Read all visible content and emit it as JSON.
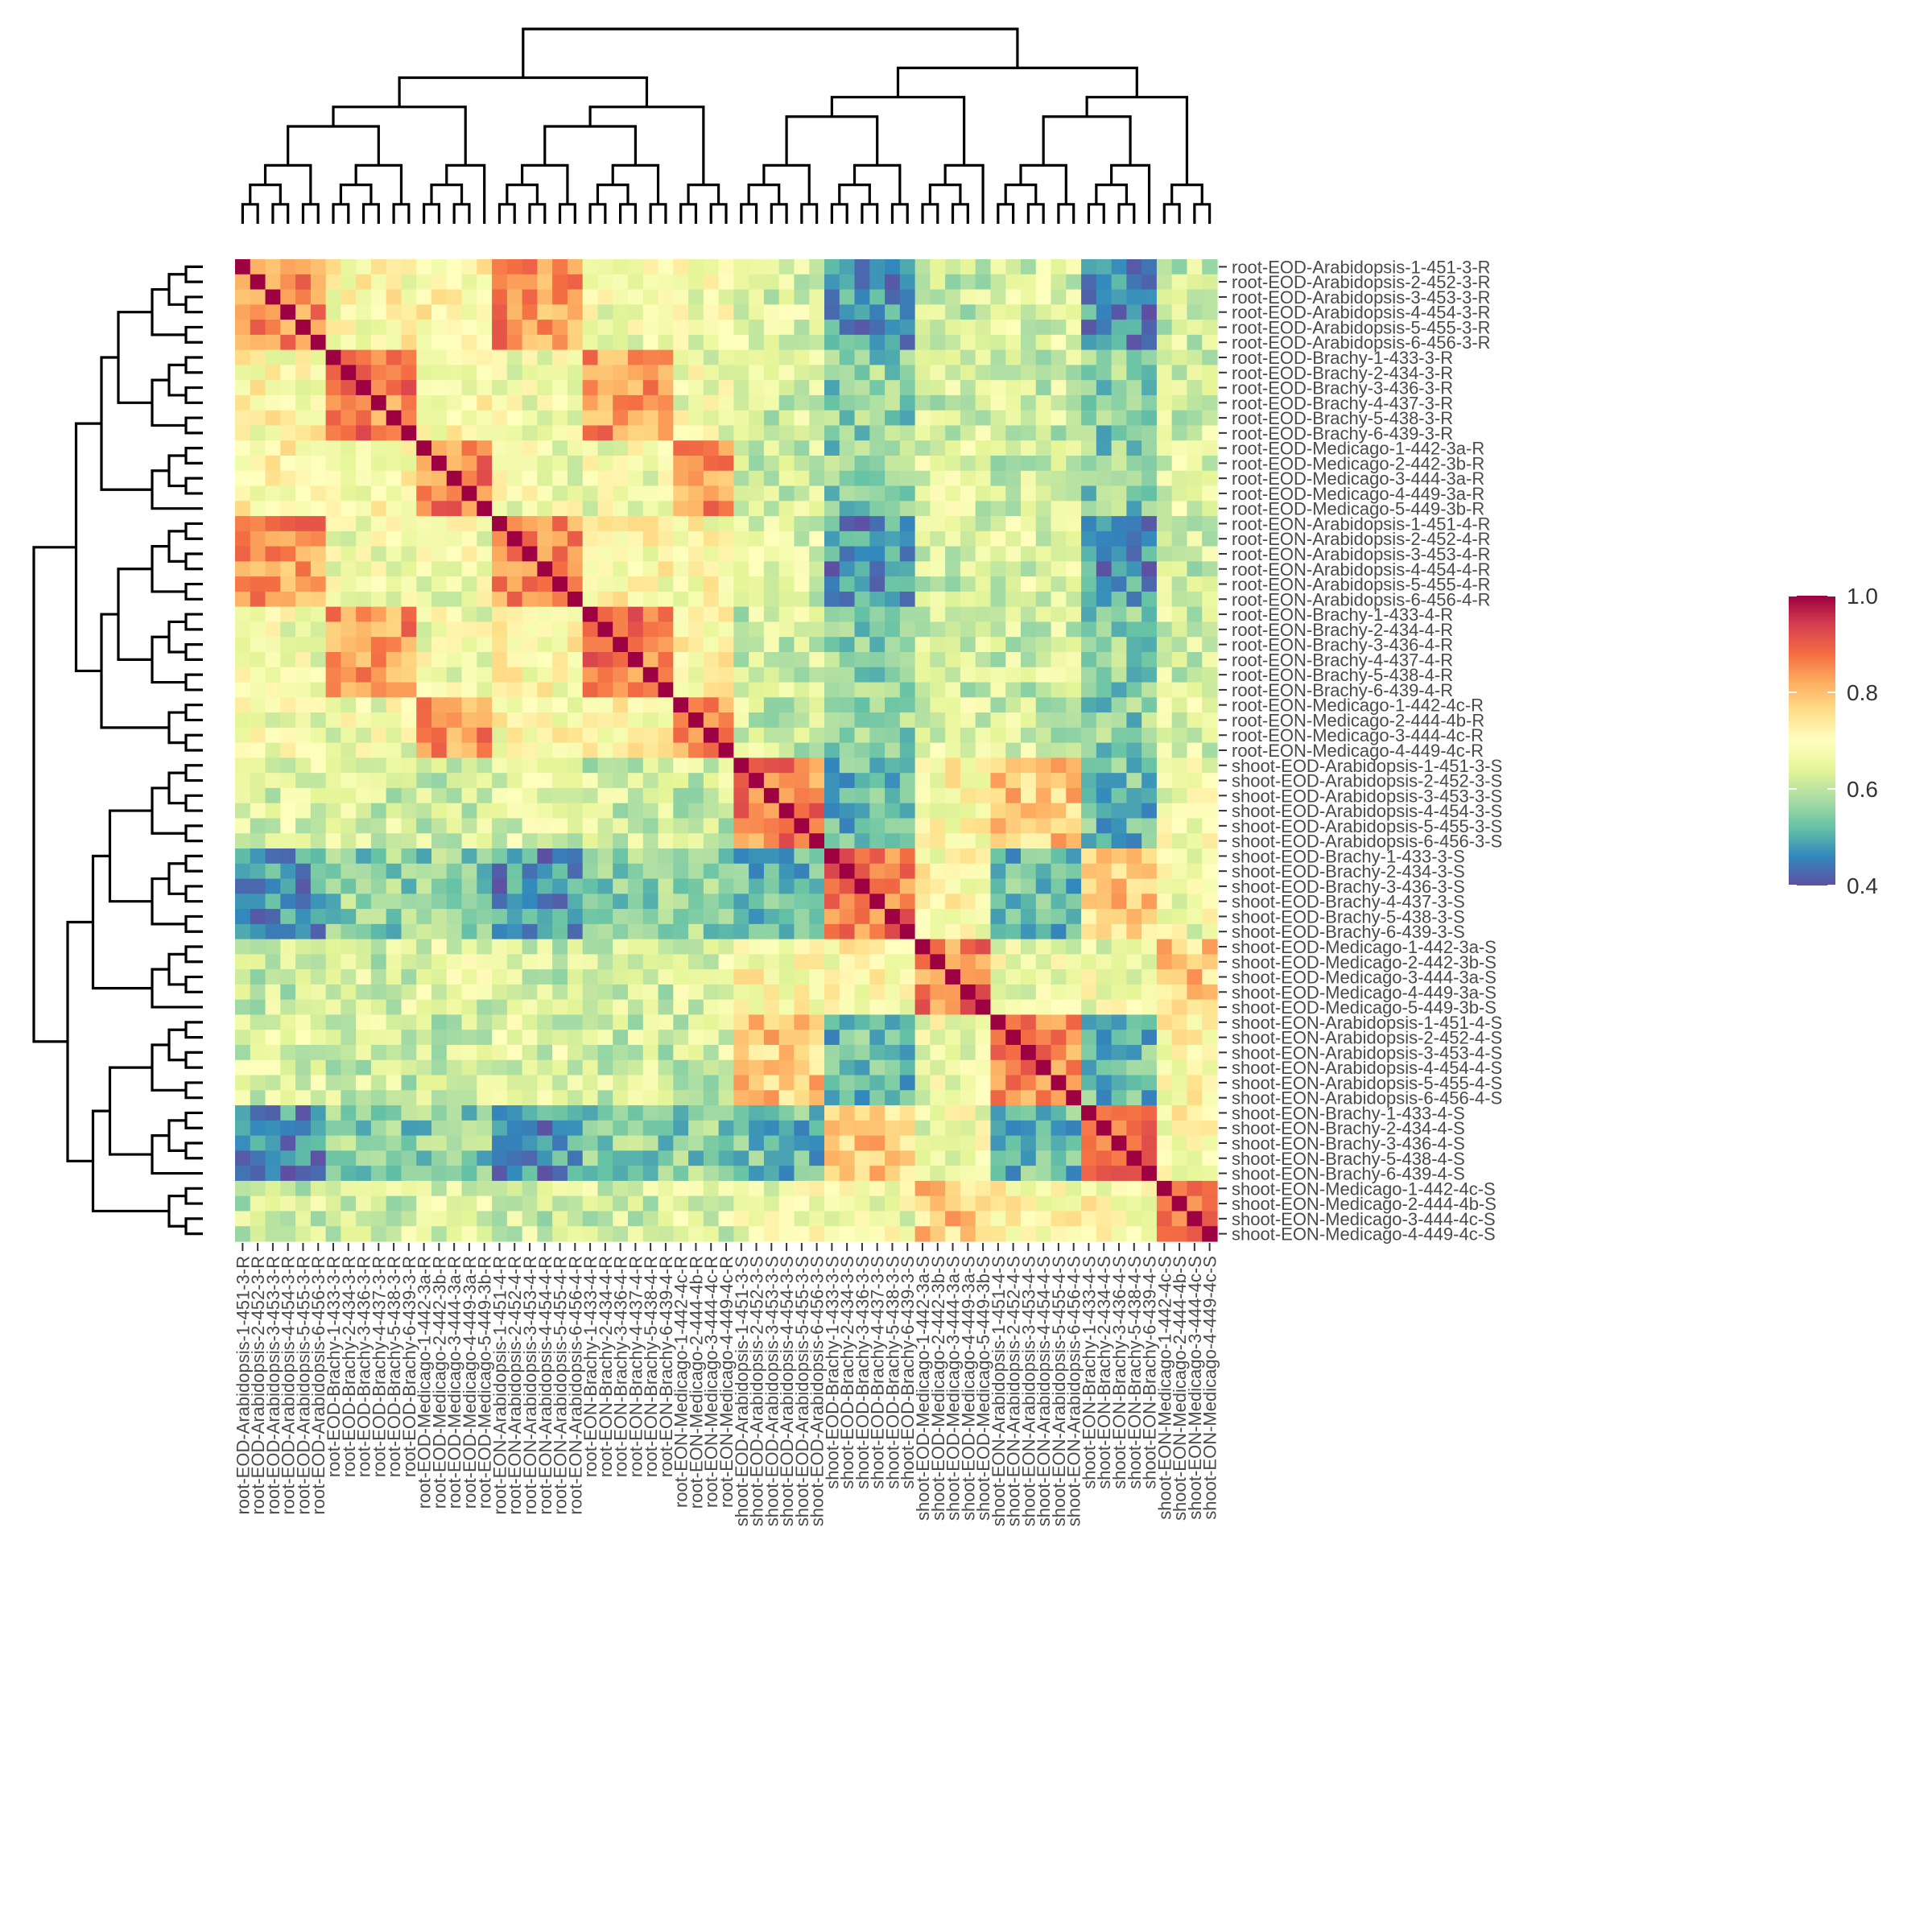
{
  "chart_data": {
    "type": "heatmap",
    "title": "",
    "xlabel": "",
    "ylabel": "",
    "samples": [
      "root-EOD-Arabidopsis-1-451-3-R",
      "root-EOD-Arabidopsis-2-452-3-R",
      "root-EOD-Arabidopsis-3-453-3-R",
      "root-EOD-Arabidopsis-4-454-3-R",
      "root-EOD-Arabidopsis-5-455-3-R",
      "root-EOD-Arabidopsis-6-456-3-R",
      "root-EOD-Brachy-1-433-3-R",
      "root-EOD-Brachy-2-434-3-R",
      "root-EOD-Brachy-3-436-3-R",
      "root-EOD-Brachy-4-437-3-R",
      "root-EOD-Brachy-5-438-3-R",
      "root-EOD-Brachy-6-439-3-R",
      "root-EOD-Medicago-1-442-3a-R",
      "root-EOD-Medicago-2-442-3b-R",
      "root-EOD-Medicago-3-444-3a-R",
      "root-EOD-Medicago-4-449-3a-R",
      "root-EOD-Medicago-5-449-3b-R",
      "root-EON-Arabidopsis-1-451-4-R",
      "root-EON-Arabidopsis-2-452-4-R",
      "root-EON-Arabidopsis-3-453-4-R",
      "root-EON-Arabidopsis-4-454-4-R",
      "root-EON-Arabidopsis-5-455-4-R",
      "root-EON-Arabidopsis-6-456-4-R",
      "root-EON-Brachy-1-433-4-R",
      "root-EON-Brachy-2-434-4-R",
      "root-EON-Brachy-3-436-4-R",
      "root-EON-Brachy-4-437-4-R",
      "root-EON-Brachy-5-438-4-R",
      "root-EON-Brachy-6-439-4-R",
      "root-EON-Medicago-1-442-4c-R",
      "root-EON-Medicago-2-444-4b-R",
      "root-EON-Medicago-3-444-4c-R",
      "root-EON-Medicago-4-449-4c-R",
      "shoot-EOD-Arabidopsis-1-451-3-S",
      "shoot-EOD-Arabidopsis-2-452-3-S",
      "shoot-EOD-Arabidopsis-3-453-3-S",
      "shoot-EOD-Arabidopsis-4-454-3-S",
      "shoot-EOD-Arabidopsis-5-455-3-S",
      "shoot-EOD-Arabidopsis-6-456-3-S",
      "shoot-EOD-Brachy-1-433-3-S",
      "shoot-EOD-Brachy-2-434-3-S",
      "shoot-EOD-Brachy-3-436-3-S",
      "shoot-EOD-Brachy-4-437-3-S",
      "shoot-EOD-Brachy-5-438-3-S",
      "shoot-EOD-Brachy-6-439-3-S",
      "shoot-EOD-Medicago-1-442-3a-S",
      "shoot-EOD-Medicago-2-442-3b-S",
      "shoot-EOD-Medicago-3-444-3a-S",
      "shoot-EOD-Medicago-4-449-3a-S",
      "shoot-EOD-Medicago-5-449-3b-S",
      "shoot-EON-Arabidopsis-1-451-4-S",
      "shoot-EON-Arabidopsis-2-452-4-S",
      "shoot-EON-Arabidopsis-3-453-4-S",
      "shoot-EON-Arabidopsis-4-454-4-S",
      "shoot-EON-Arabidopsis-5-455-4-S",
      "shoot-EON-Arabidopsis-6-456-4-S",
      "shoot-EON-Brachy-1-433-4-S",
      "shoot-EON-Brachy-2-434-4-S",
      "shoot-EON-Brachy-3-436-4-S",
      "shoot-EON-Brachy-5-438-4-S",
      "shoot-EON-Brachy-6-439-4-S",
      "shoot-EON-Medicago-1-442-4c-S",
      "shoot-EON-Medicago-2-444-4b-S",
      "shoot-EON-Medicago-3-444-4c-S",
      "shoot-EON-Medicago-4-449-4c-S"
    ],
    "groups": [
      {
        "tissue": "root",
        "cond": "EOD",
        "species": "Arabidopsis",
        "count": 6
      },
      {
        "tissue": "root",
        "cond": "EOD",
        "species": "Brachy",
        "count": 6
      },
      {
        "tissue": "root",
        "cond": "EOD",
        "species": "Medicago",
        "count": 5
      },
      {
        "tissue": "root",
        "cond": "EON",
        "species": "Arabidopsis",
        "count": 6
      },
      {
        "tissue": "root",
        "cond": "EON",
        "species": "Brachy",
        "count": 6
      },
      {
        "tissue": "root",
        "cond": "EON",
        "species": "Medicago",
        "count": 4
      },
      {
        "tissue": "shoot",
        "cond": "EOD",
        "species": "Arabidopsis",
        "count": 6
      },
      {
        "tissue": "shoot",
        "cond": "EOD",
        "species": "Brachy",
        "count": 6
      },
      {
        "tissue": "shoot",
        "cond": "EOD",
        "species": "Medicago",
        "count": 5
      },
      {
        "tissue": "shoot",
        "cond": "EON",
        "species": "Arabidopsis",
        "count": 6
      },
      {
        "tissue": "shoot",
        "cond": "EON",
        "species": "Brachy",
        "count": 5
      },
      {
        "tissue": "shoot",
        "cond": "EON",
        "species": "Medicago",
        "count": 4
      }
    ],
    "value_range": [
      0.4,
      1.0
    ],
    "legend": {
      "position": "right",
      "ticks": [
        "1.0",
        "0.8",
        "0.6",
        "0.4"
      ],
      "tick_values": [
        1.0,
        0.8,
        0.6,
        0.4
      ]
    },
    "colormap": [
      "#5e4fa2",
      "#3288bd",
      "#66c2a5",
      "#abdda4",
      "#e6f598",
      "#ffffbf",
      "#fee08b",
      "#fdae61",
      "#f46d43",
      "#d53e4f",
      "#9e0142"
    ],
    "dendrogram_color": "#000000"
  }
}
